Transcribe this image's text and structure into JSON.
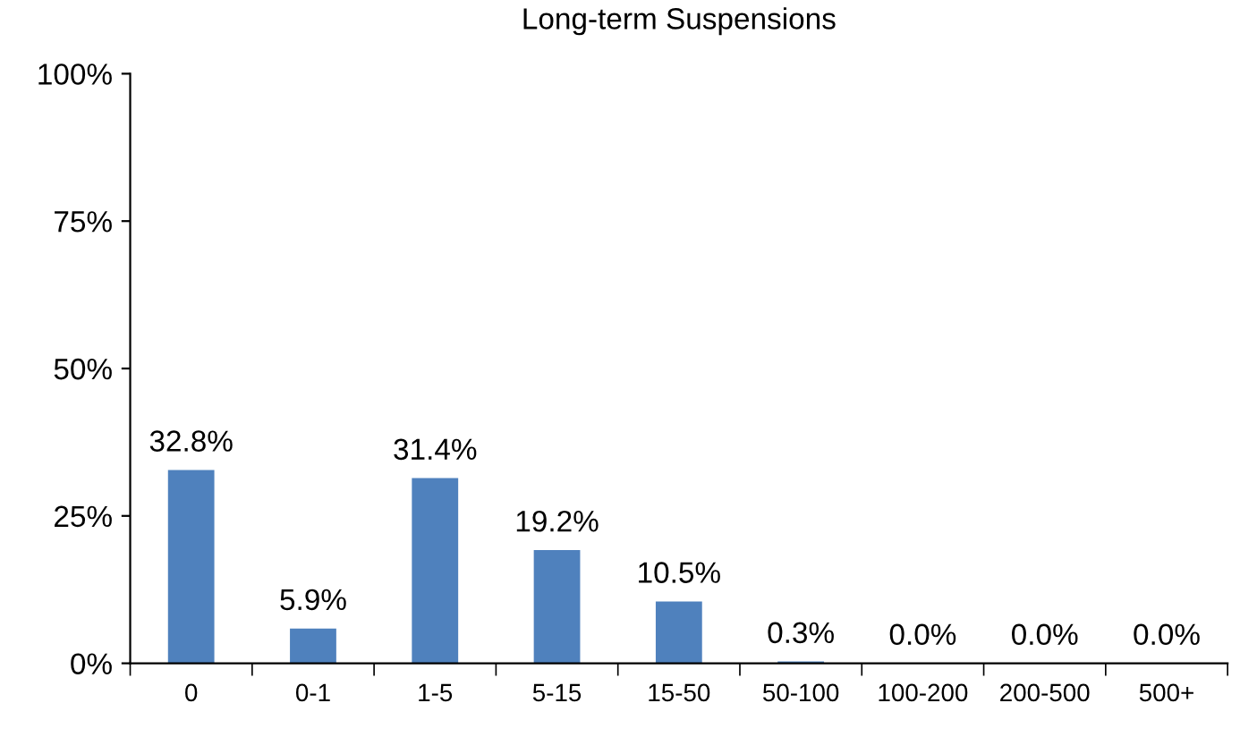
{
  "chart_data": {
    "type": "bar",
    "title": "Long-term Suspensions",
    "categories": [
      "0",
      "0-1",
      "1-5",
      "5-15",
      "15-50",
      "50-100",
      "100-200",
      "200-500",
      "500+"
    ],
    "values": [
      32.8,
      5.9,
      31.4,
      19.2,
      10.5,
      0.3,
      0.0,
      0.0,
      0.0
    ],
    "value_labels": [
      "32.8%",
      "5.9%",
      "31.4%",
      "19.2%",
      "10.5%",
      "0.3%",
      "0.0%",
      "0.0%",
      "0.0%"
    ],
    "color": "#4f81bd",
    "ylim": [
      0,
      100
    ],
    "yticks": [
      {
        "value": 0,
        "label": "0%"
      },
      {
        "value": 25,
        "label": "25%"
      },
      {
        "value": 50,
        "label": "50%"
      },
      {
        "value": 75,
        "label": "75%"
      },
      {
        "value": 100,
        "label": "100%"
      }
    ],
    "grid": false,
    "legend": false
  }
}
